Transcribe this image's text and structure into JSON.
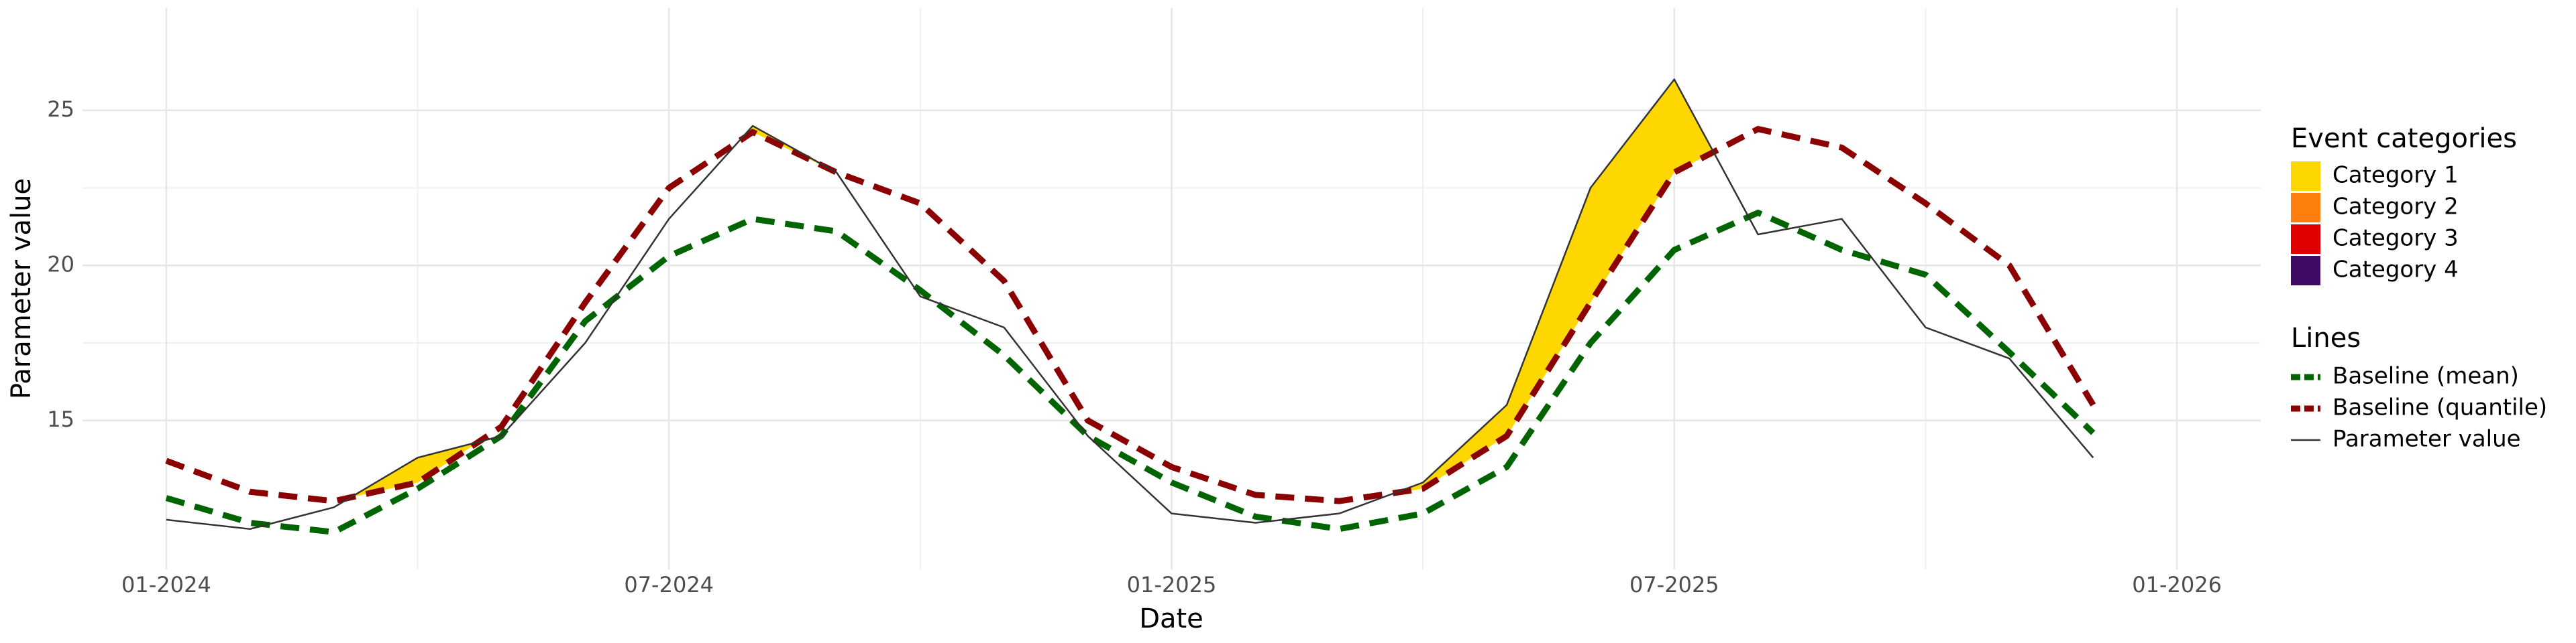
{
  "chart_data": {
    "type": "line",
    "x_label": "Date",
    "y_label": "Parameter value",
    "x": [
      "01-2024",
      "02-2024",
      "03-2024",
      "04-2024",
      "05-2024",
      "06-2024",
      "07-2024",
      "08-2024",
      "09-2024",
      "10-2024",
      "11-2024",
      "12-2024",
      "01-2025",
      "02-2025",
      "03-2025",
      "04-2025",
      "05-2025",
      "06-2025",
      "07-2025",
      "08-2025",
      "09-2025",
      "10-2025",
      "11-2025",
      "12-2025"
    ],
    "series": [
      {
        "name": "Baseline (mean)",
        "color": "#006400",
        "line_style": "dashed",
        "values": [
          12.5,
          11.7,
          11.4,
          12.8,
          14.5,
          18.2,
          20.3,
          21.5,
          21.1,
          19.2,
          17.1,
          14.5,
          13.0,
          11.9,
          11.5,
          12.0,
          13.5,
          17.5,
          20.5,
          21.7,
          20.5,
          19.7,
          17.2,
          14.6
        ]
      },
      {
        "name": "Baseline (quantile)",
        "color": "#8b0000",
        "line_style": "dashed",
        "values": [
          13.7,
          12.7,
          12.4,
          13.0,
          14.8,
          18.8,
          22.5,
          24.3,
          23.0,
          22.0,
          19.5,
          15.0,
          13.5,
          12.6,
          12.4,
          12.8,
          14.5,
          18.8,
          23.0,
          24.4,
          23.8,
          22.0,
          20.0,
          15.5
        ]
      },
      {
        "name": "Parameter value",
        "color": "#333333",
        "line_style": "solid",
        "values": [
          11.8,
          11.5,
          12.2,
          13.8,
          14.5,
          17.5,
          21.5,
          24.5,
          23.0,
          19.0,
          18.0,
          14.5,
          12.0,
          11.7,
          12.0,
          13.0,
          15.5,
          22.5,
          26.0,
          21.0,
          21.5,
          18.0,
          17.0,
          13.8
        ]
      }
    ],
    "event_title": "Event categories",
    "event_categories": [
      {
        "name": "Category 1",
        "color": "#ffd700"
      },
      {
        "name": "Category 2",
        "color": "#ff7f0e"
      },
      {
        "name": "Category 3",
        "color": "#e00000"
      },
      {
        "name": "Category 4",
        "color": "#3f0a63"
      }
    ],
    "lines_title": "Lines",
    "xlim": [
      "12-2023",
      "02-2026"
    ],
    "xticks": [
      "01-2024",
      "07-2024",
      "01-2025",
      "07-2025",
      "01-2026"
    ],
    "ylim": [
      10.2,
      28.3
    ],
    "yticks": [
      15,
      20,
      25
    ],
    "grid": true
  }
}
